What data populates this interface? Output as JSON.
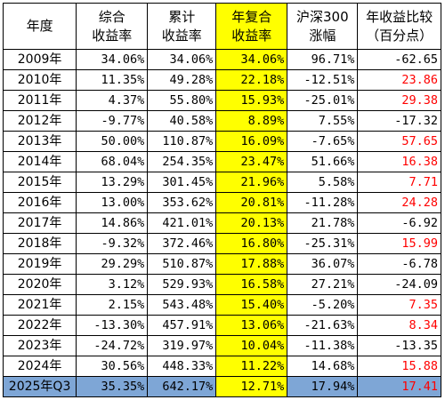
{
  "headers": [
    "年度",
    "综合\n收益率",
    "累计\n收益率",
    "年复合\n收益率",
    "沪深300\n涨幅",
    "年收益比较\n（百分点）"
  ],
  "rows": [
    {
      "year": "2009年",
      "comp": "34.06%",
      "cum": "34.06%",
      "cagr": "34.06%",
      "hs300": "96.71%",
      "diff": "-62.65",
      "diff_color": "black"
    },
    {
      "year": "2010年",
      "comp": "11.35%",
      "cum": "49.28%",
      "cagr": "22.18%",
      "hs300": "-12.51%",
      "diff": "23.86",
      "diff_color": "red"
    },
    {
      "year": "2011年",
      "comp": "4.37%",
      "cum": "55.80%",
      "cagr": "15.93%",
      "hs300": "-25.01%",
      "diff": "29.38",
      "diff_color": "red"
    },
    {
      "year": "2012年",
      "comp": "-9.77%",
      "cum": "40.58%",
      "cagr": "8.89%",
      "hs300": "7.55%",
      "diff": "-17.32",
      "diff_color": "black"
    },
    {
      "year": "2013年",
      "comp": "50.00%",
      "cum": "110.87%",
      "cagr": "16.09%",
      "hs300": "-7.65%",
      "diff": "57.65",
      "diff_color": "red"
    },
    {
      "year": "2014年",
      "comp": "68.04%",
      "cum": "254.35%",
      "cagr": "23.47%",
      "hs300": "51.66%",
      "diff": "16.38",
      "diff_color": "red"
    },
    {
      "year": "2015年",
      "comp": "13.29%",
      "cum": "301.45%",
      "cagr": "21.96%",
      "hs300": "5.58%",
      "diff": "7.71",
      "diff_color": "red"
    },
    {
      "year": "2016年",
      "comp": "13.00%",
      "cum": "353.62%",
      "cagr": "20.81%",
      "hs300": "-11.28%",
      "diff": "24.28",
      "diff_color": "red"
    },
    {
      "year": "2017年",
      "comp": "14.86%",
      "cum": "421.01%",
      "cagr": "20.13%",
      "hs300": "21.78%",
      "diff": "-6.92",
      "diff_color": "black"
    },
    {
      "year": "2018年",
      "comp": "-9.32%",
      "cum": "372.46%",
      "cagr": "16.80%",
      "hs300": "-25.31%",
      "diff": "15.99",
      "diff_color": "red"
    },
    {
      "year": "2019年",
      "comp": "29.29%",
      "cum": "510.87%",
      "cagr": "17.88%",
      "hs300": "36.07%",
      "diff": "-6.78",
      "diff_color": "black"
    },
    {
      "year": "2020年",
      "comp": "3.12%",
      "cum": "529.93%",
      "cagr": "16.58%",
      "hs300": "27.21%",
      "diff": "-24.09",
      "diff_color": "black"
    },
    {
      "year": "2021年",
      "comp": "2.15%",
      "cum": "543.48%",
      "cagr": "15.40%",
      "hs300": "-5.20%",
      "diff": "7.35",
      "diff_color": "red"
    },
    {
      "year": "2022年",
      "comp": "-13.30%",
      "cum": "457.91%",
      "cagr": "13.06%",
      "hs300": "-21.63%",
      "diff": "8.34",
      "diff_color": "red"
    },
    {
      "year": "2023年",
      "comp": "-24.72%",
      "cum": "319.97%",
      "cagr": "10.04%",
      "hs300": "-11.38%",
      "diff": "-13.35",
      "diff_color": "black"
    },
    {
      "year": "2024年",
      "comp": "30.56%",
      "cum": "448.33%",
      "cagr": "11.22%",
      "hs300": "14.68%",
      "diff": "15.88",
      "diff_color": "red"
    },
    {
      "year": "2025年Q3",
      "comp": "35.35%",
      "cum": "642.17%",
      "cagr": "12.71%",
      "hs300": "17.94%",
      "diff": "17.41",
      "diff_color": "red"
    }
  ],
  "colors": {
    "highlight_column": "#ffff00",
    "last_row": "#7ea6d6",
    "positive_diff": "#ff0000",
    "negative_diff": "#000000",
    "border": "#000000"
  }
}
